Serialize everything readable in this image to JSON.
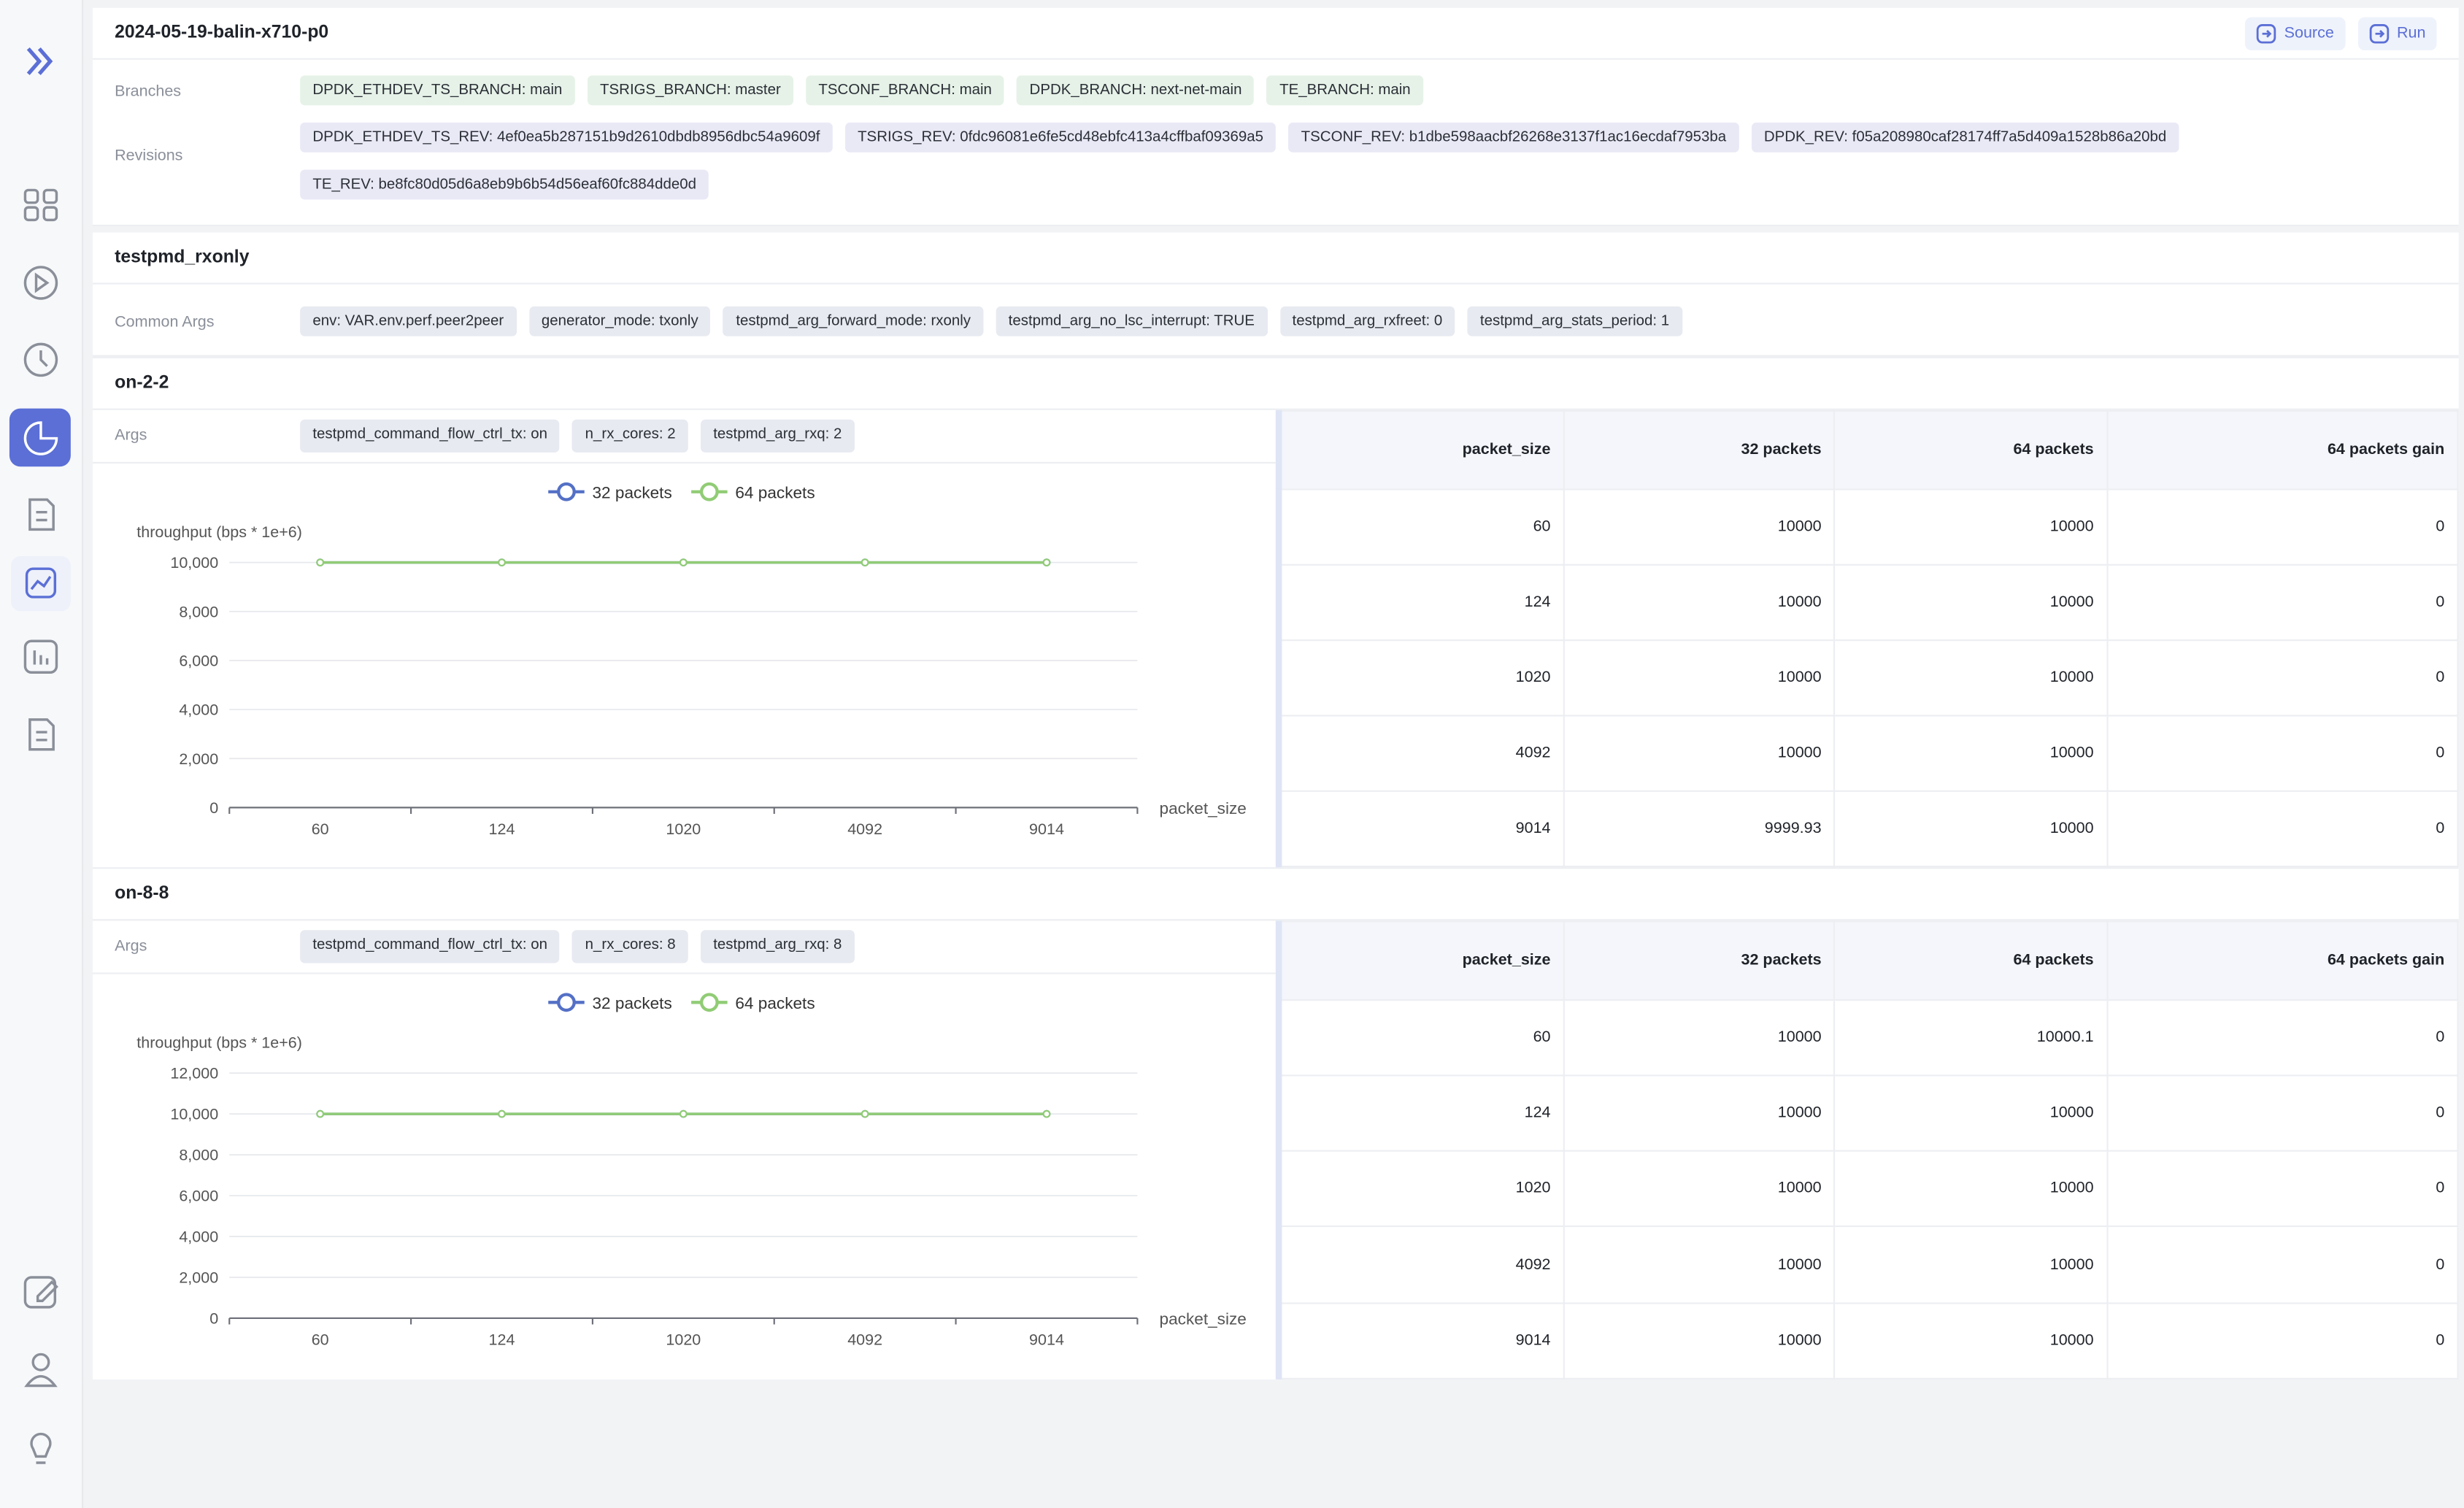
{
  "header": {
    "title": "2024-05-19-balin-x710-p0",
    "buttons": [
      "Source",
      "Run"
    ]
  },
  "branches": {
    "label": "Branches",
    "items": [
      "DPDK_ETHDEV_TS_BRANCH: main",
      "TSRIGS_BRANCH: master",
      "TSCONF_BRANCH: main",
      "DPDK_BRANCH: next-net-main",
      "TE_BRANCH: main"
    ]
  },
  "revisions": {
    "label": "Revisions",
    "items": [
      "DPDK_ETHDEV_TS_REV: 4ef0ea5b287151b9d2610dbdb8956dbc54a9609f",
      "TSRIGS_REV: 0fdc96081e6fe5cd48ebfc413a4cffbaf09369a5",
      "TSCONF_REV: b1dbe598aacbf26268e3137f1ac16ecdaf7953ba",
      "DPDK_REV: f05a208980caf28174ff7a5d409a1528b86a20bd",
      "TE_REV: be8fc80d05d6a8eb9b6b54d56eaf60fc884dde0d"
    ]
  },
  "test": {
    "name": "testpmd_rxonly",
    "common_args_label": "Common Args",
    "common_args": [
      "env: VAR.env.perf.peer2peer",
      "generator_mode: txonly",
      "testpmd_arg_forward_mode: rxonly",
      "testpmd_arg_no_lsc_interrupt: TRUE",
      "testpmd_arg_rxfreet: 0",
      "testpmd_arg_stats_period: 1"
    ]
  },
  "sections": [
    {
      "name": "on-2-2",
      "args_label": "Args",
      "args": [
        "testpmd_command_flow_ctrl_tx: on",
        "n_rx_cores: 2",
        "testpmd_arg_rxq: 2"
      ],
      "table": {
        "columns": [
          "packet_size",
          "32 packets",
          "64 packets",
          "64 packets gain"
        ],
        "rows": [
          [
            "60",
            "10000",
            "10000",
            "0"
          ],
          [
            "124",
            "10000",
            "10000",
            "0"
          ],
          [
            "1020",
            "10000",
            "10000",
            "0"
          ],
          [
            "4092",
            "10000",
            "10000",
            "0"
          ],
          [
            "9014",
            "9999.93",
            "10000",
            "0"
          ]
        ]
      }
    },
    {
      "name": "on-8-8",
      "args_label": "Args",
      "args": [
        "testpmd_command_flow_ctrl_tx: on",
        "n_rx_cores: 8",
        "testpmd_arg_rxq: 8"
      ],
      "table": {
        "columns": [
          "packet_size",
          "32 packets",
          "64 packets",
          "64 packets gain"
        ],
        "rows": [
          [
            "60",
            "10000",
            "10000.1",
            "0"
          ],
          [
            "124",
            "10000",
            "10000",
            "0"
          ],
          [
            "1020",
            "10000",
            "10000",
            "0"
          ],
          [
            "4092",
            "10000",
            "10000",
            "0"
          ],
          [
            "9014",
            "10000",
            "10000",
            "0"
          ]
        ]
      }
    }
  ],
  "chart_data": [
    {
      "type": "line",
      "y_label": "throughput (bps * 1e+6)",
      "x_label": "packet_size",
      "categories": [
        "60",
        "124",
        "1020",
        "4092",
        "9014"
      ],
      "series": [
        {
          "name": "32 packets",
          "color": "#5470c6",
          "values": [
            10000,
            10000,
            10000,
            10000,
            9999.93
          ]
        },
        {
          "name": "64 packets",
          "color": "#91cc75",
          "values": [
            10000,
            10000,
            10000,
            10000,
            10000
          ]
        }
      ],
      "ylim": [
        0,
        10000
      ],
      "yticks": [
        0,
        {
          "value": 2000,
          "label": "2,000"
        },
        {
          "value": 4000,
          "label": "4,000"
        },
        {
          "value": 6000,
          "label": "6,000"
        },
        {
          "value": 8000,
          "label": "8,000"
        },
        {
          "value": 10000,
          "label": "10,000"
        }
      ],
      "grid": true,
      "legend": "top"
    },
    {
      "type": "line",
      "y_label": "throughput (bps * 1e+6)",
      "x_label": "packet_size",
      "categories": [
        "60",
        "124",
        "1020",
        "4092",
        "9014"
      ],
      "series": [
        {
          "name": "32 packets",
          "color": "#5470c6",
          "values": [
            10000,
            10000,
            10000,
            10000,
            10000
          ]
        },
        {
          "name": "64 packets",
          "color": "#91cc75",
          "values": [
            10000.1,
            10000,
            10000,
            10000,
            10000
          ]
        }
      ],
      "ylim": [
        0,
        12000
      ],
      "yticks": [
        0,
        {
          "value": 2000,
          "label": "2,000"
        },
        {
          "value": 4000,
          "label": "4,000"
        },
        {
          "value": 6000,
          "label": "6,000"
        },
        {
          "value": 8000,
          "label": "8,000"
        },
        {
          "value": 10000,
          "label": "10,000"
        },
        {
          "value": 12000,
          "label": "12,000"
        }
      ],
      "grid": true,
      "legend": "top"
    }
  ]
}
